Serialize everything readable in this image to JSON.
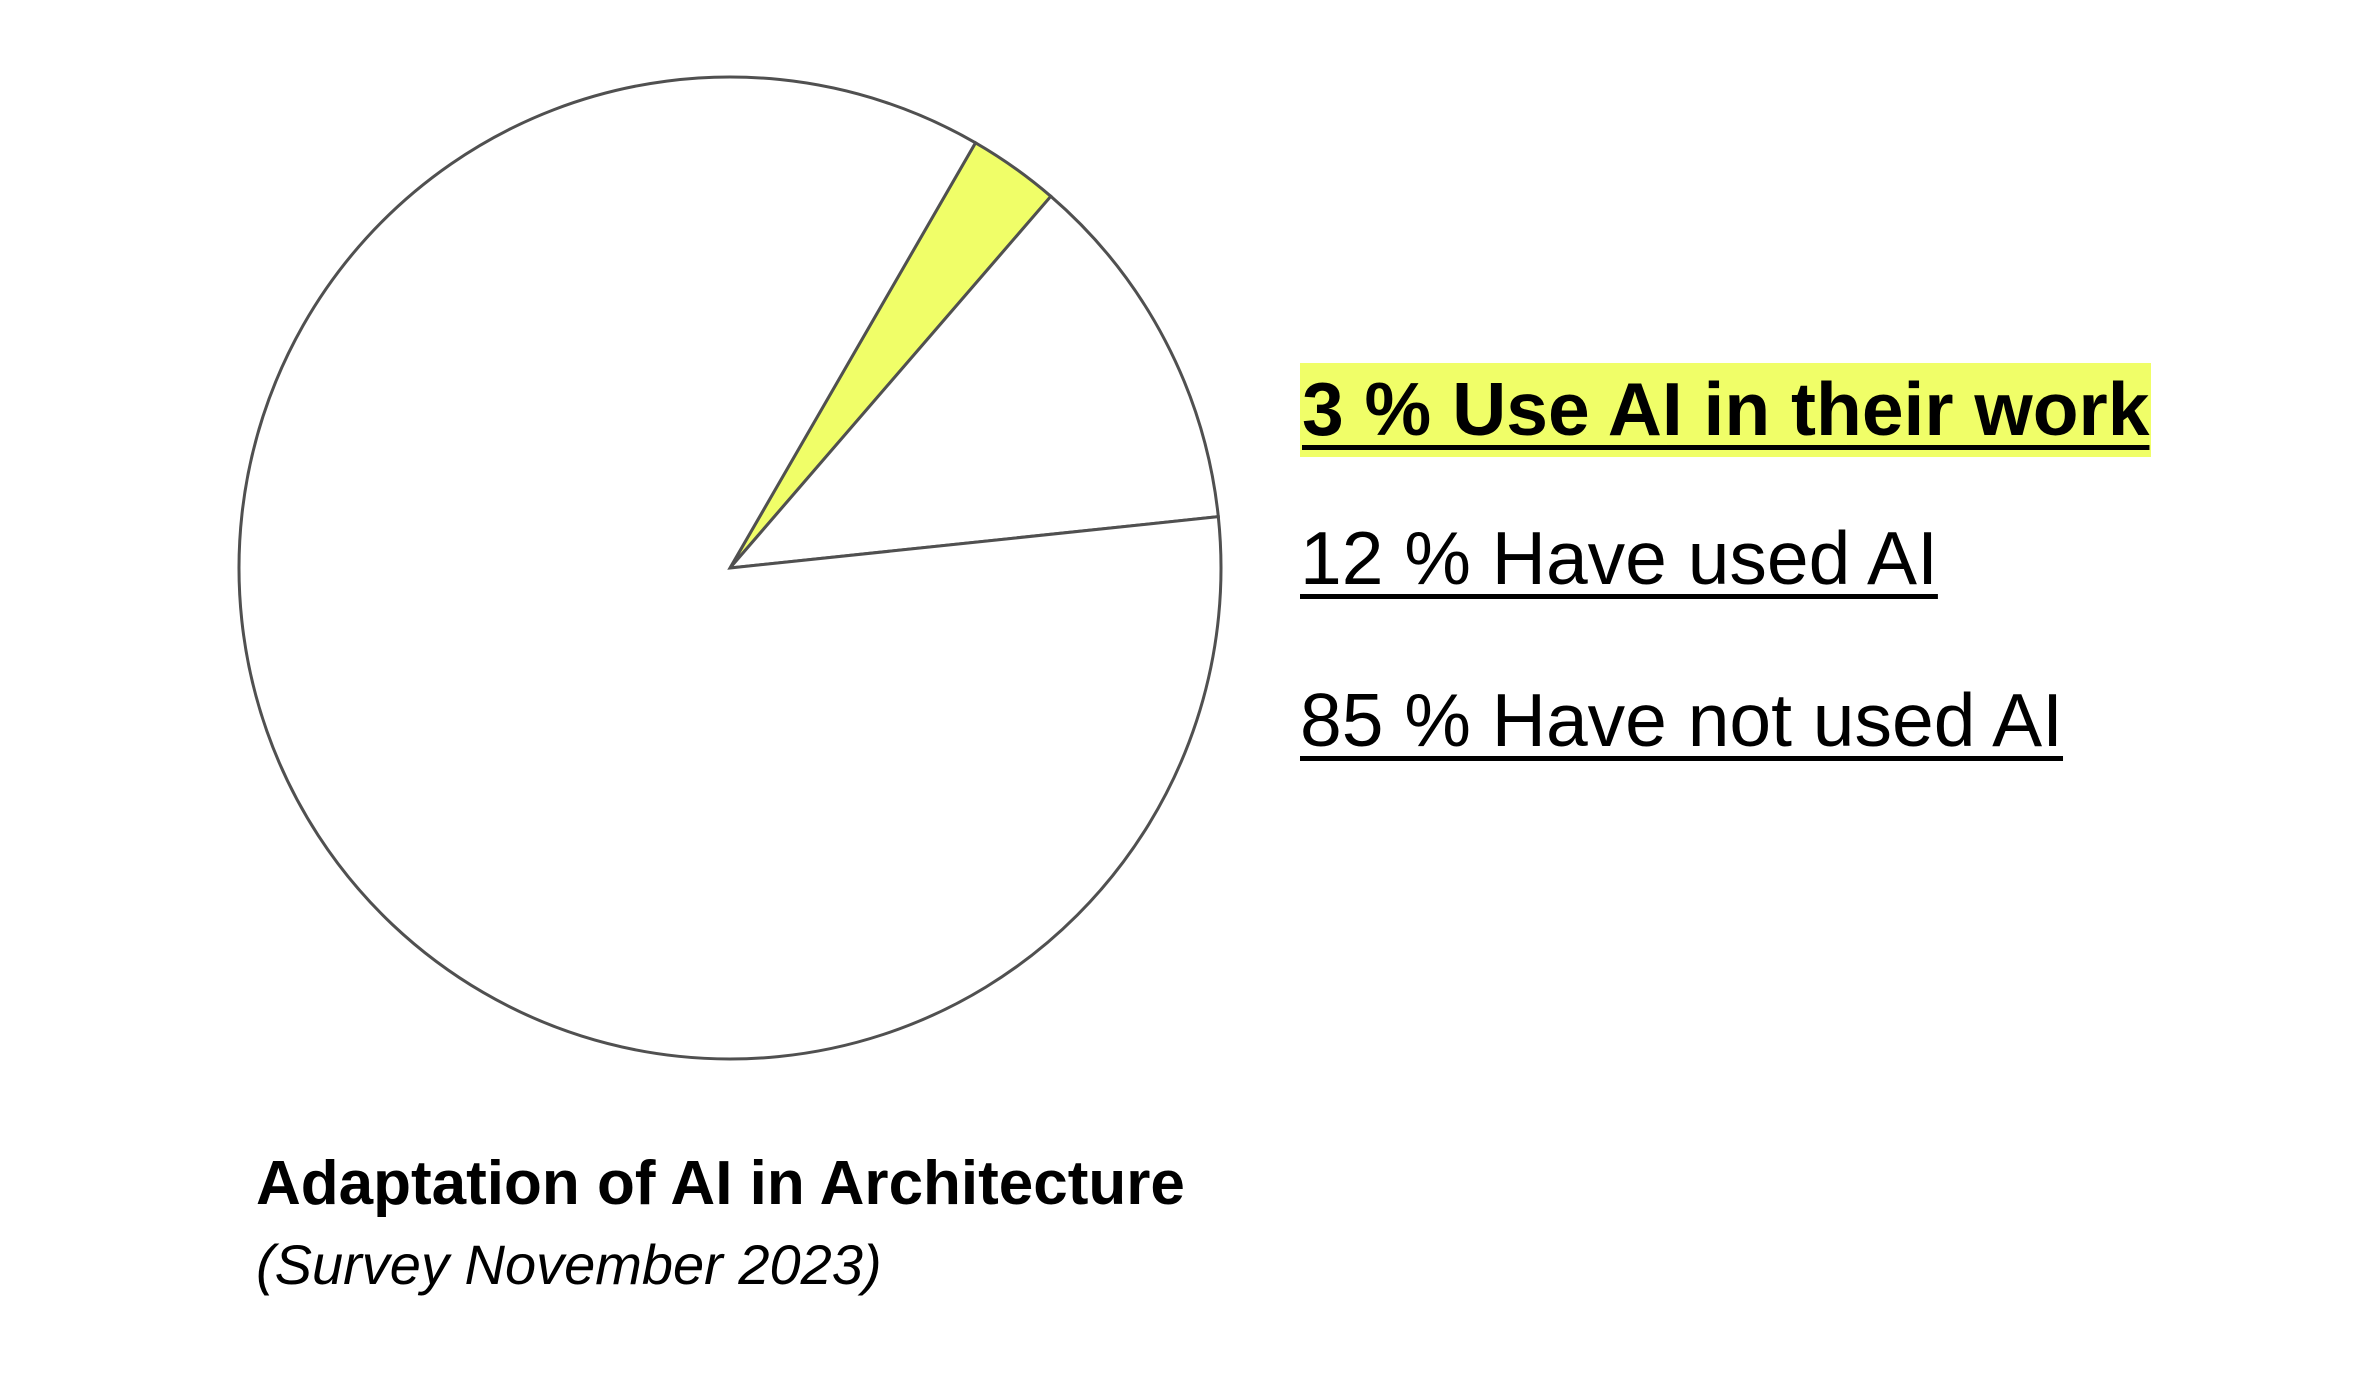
{
  "chart_data": {
    "type": "pie",
    "title": "Adaptation of AI in Architecture",
    "subtitle": "(Survey November 2023)",
    "legend_placement": "right",
    "slices": [
      {
        "label": "3 % Use AI in their work",
        "value": 3,
        "color": "#f0fe68",
        "highlight": true
      },
      {
        "label": "12 % Have used AI",
        "value": 12,
        "color": "#ffffff",
        "highlight": false
      },
      {
        "label": "85 % Have not used AI",
        "value": 85,
        "color": "#ffffff",
        "highlight": false
      }
    ],
    "outline_color": "#505050"
  }
}
